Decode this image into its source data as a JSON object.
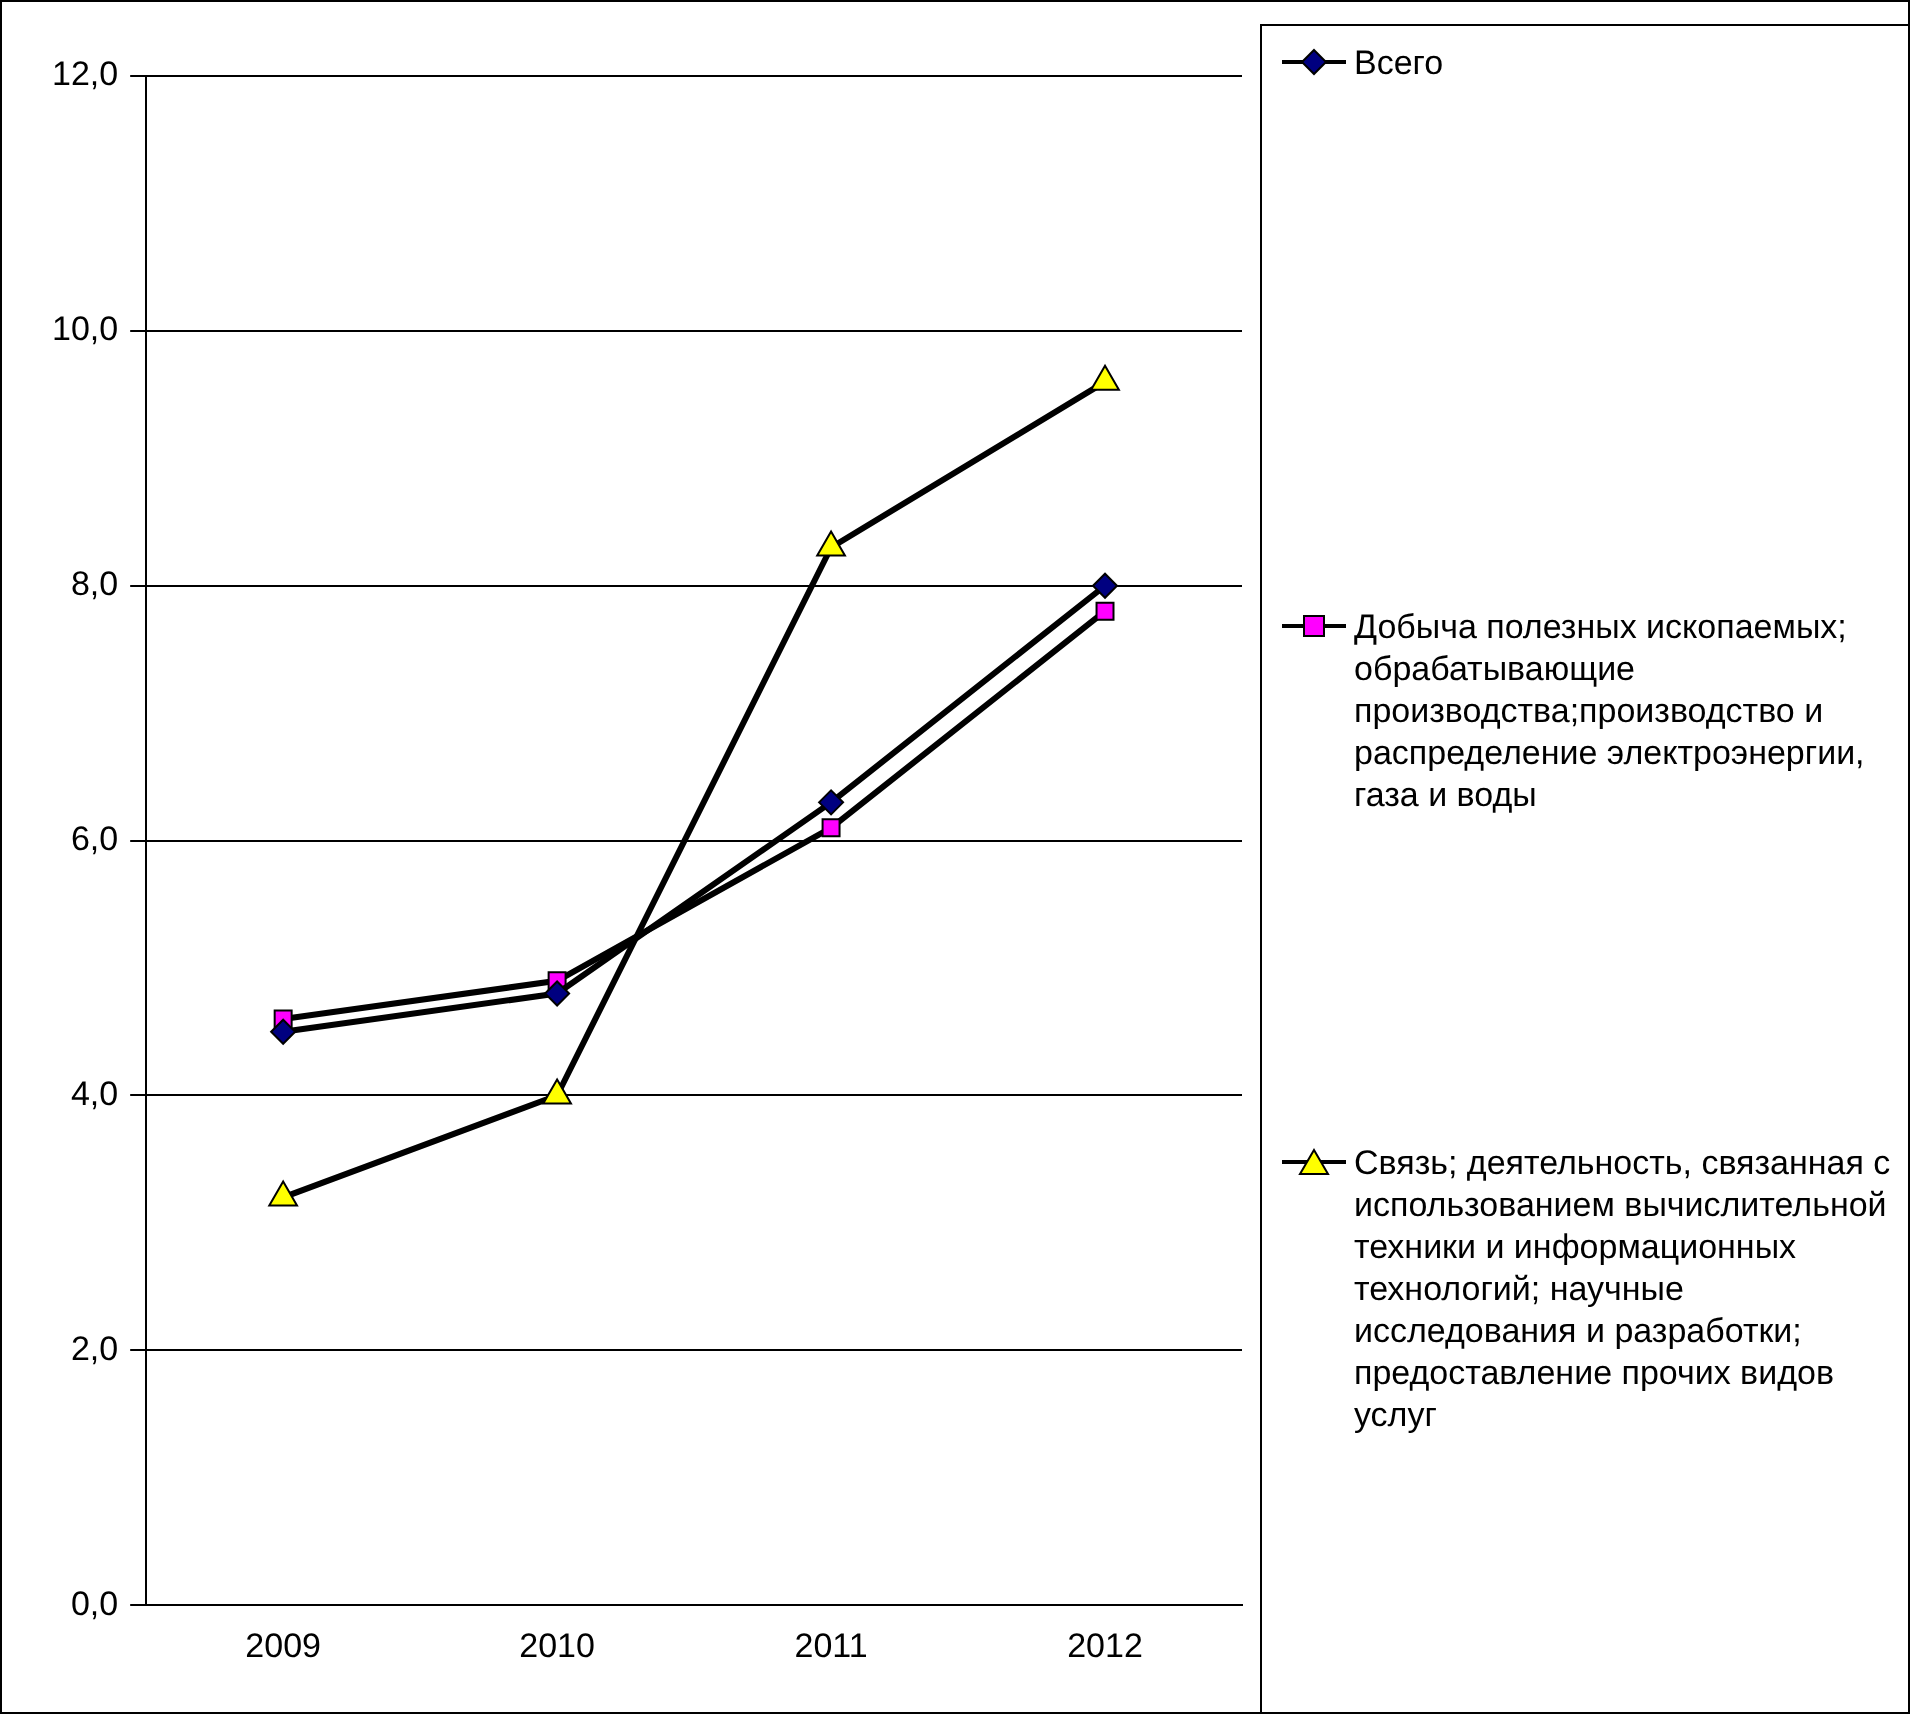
{
  "chart_data": {
    "type": "line",
    "categories": [
      "2009",
      "2010",
      "2011",
      "2012"
    ],
    "series": [
      {
        "name": "Всего",
        "color": "#000080",
        "marker": "diamond",
        "values": [
          4.5,
          4.8,
          6.3,
          8.0
        ]
      },
      {
        "name": "Добыча полезных ископаемых; обрабатывающие производства;производство и распределение электроэнергии, газа и воды",
        "color": "#ff00ff",
        "marker": "square",
        "values": [
          4.6,
          4.9,
          6.1,
          7.8
        ]
      },
      {
        "name": "Связь; деятельность, связанная с использованием вычислительной техники и информационных технологий; научные исследования и разработки; предоставление прочих видов услуг",
        "color": "#ffff00",
        "marker": "triangle",
        "values": [
          3.2,
          4.0,
          8.3,
          9.6
        ]
      }
    ],
    "ylim": [
      0,
      12
    ],
    "yticks": [
      {
        "value": 0,
        "label": "0,0"
      },
      {
        "value": 2,
        "label": "2,0"
      },
      {
        "value": 4,
        "label": "4,0"
      },
      {
        "value": 6,
        "label": "6,0"
      },
      {
        "value": 8,
        "label": "8,0"
      },
      {
        "value": 10,
        "label": "10,0"
      },
      {
        "value": 12,
        "label": "12,0"
      }
    ],
    "grid": "y",
    "legend": "right",
    "line_style": "solid"
  }
}
